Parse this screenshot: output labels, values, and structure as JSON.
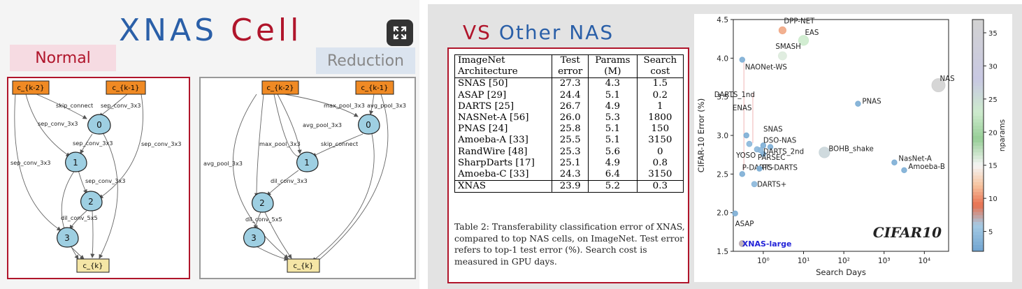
{
  "left": {
    "title_part1": "XNAS",
    "title_part2": "Cell",
    "expand_button": "expand-icon",
    "tag_normal": "Normal",
    "tag_reduction": "Reduction",
    "normal_cell": {
      "nodes": [
        "c_{k-2}",
        "c_{k-1}",
        "0",
        "1",
        "2",
        "3",
        "c_{k}"
      ],
      "edges": [
        "skip_connect",
        "sep_conv_3x3",
        "sep_conv_3x3",
        "sep_conv_3x3",
        "sep_conv_3x3",
        "sep_conv_3x3",
        "sep_conv_3x3",
        "dil_conv_5x5"
      ]
    },
    "reduction_cell": {
      "nodes": [
        "c_{k-2}",
        "c_{k-1}",
        "0",
        "1",
        "2",
        "3",
        "c_{k}"
      ],
      "edges": [
        "max_pool_3x3",
        "avg_pool_3x3",
        "avg_pool_3x3",
        "max_pool_3x3",
        "skip_connect",
        "avg_pool_3x3",
        "dil_conv_3x3",
        "dil_conv_5x5"
      ]
    }
  },
  "right": {
    "title_part1": "VS",
    "title_part2": "Other NAS",
    "table": {
      "header_row1": [
        "ImageNet",
        "Test",
        "Params",
        "Search"
      ],
      "header_row2": [
        "Architecture",
        "error",
        "(M)",
        "cost"
      ],
      "rows": [
        [
          "SNAS [50]",
          "27.3",
          "4.3",
          "1.5"
        ],
        [
          "ASAP [29]",
          "24.4",
          "5.1",
          "0.2"
        ],
        [
          "DARTS [25]",
          "26.7",
          "4.9",
          "1"
        ],
        [
          "NASNet-A [56]",
          "26.0",
          "5.3",
          "1800"
        ],
        [
          "PNAS [24]",
          "25.8",
          "5.1",
          "150"
        ],
        [
          "Amoeba-A [33]",
          "25.5",
          "5.1",
          "3150"
        ],
        [
          "RandWire [48]",
          "25.3",
          "5.6",
          "0"
        ],
        [
          "SharpDarts [17]",
          "25.1",
          "4.9",
          "0.8"
        ],
        [
          "Amoeba-C [33]",
          "24.3",
          "6.4",
          "3150"
        ]
      ],
      "final_row": [
        "XNAS",
        "23.9",
        "5.2",
        "0.3"
      ]
    },
    "caption": "Table 2: Transferability classification error of XNAS, compared to top NAS cells, on ImageNet. Test error refers to top-1 test error (%). Search cost is measured in GPU days."
  },
  "chart_data": {
    "type": "scatter",
    "xlabel": "Search Days",
    "ylabel": "CIFAR-10 Error (%)",
    "xscale": "log",
    "xlim": [
      0.18,
      40000
    ],
    "ylim": [
      1.5,
      4.5
    ],
    "x_ticks": [
      "10⁰",
      "10¹",
      "10²",
      "10³",
      "10⁴"
    ],
    "y_ticks": [
      "1.5",
      "2.0",
      "2.5",
      "3.0",
      "3.5",
      "4.0",
      "4.5"
    ],
    "annotation": "CIFAR10",
    "colorbar": {
      "label": "nparams",
      "ticks": [
        "5",
        "10",
        "15",
        "20",
        "25",
        "30",
        "35"
      ],
      "range": [
        2,
        37
      ]
    },
    "points": [
      {
        "label": "DPP-NET",
        "x": 3,
        "y": 4.36,
        "nparams": 11
      },
      {
        "label": "EAS",
        "x": 10,
        "y": 4.23,
        "nparams": 23
      },
      {
        "label": "SMASH",
        "x": 3,
        "y": 4.03,
        "nparams": 16
      },
      {
        "label": "NAONet-WS",
        "x": 0.3,
        "y": 3.98,
        "nparams": 3
      },
      {
        "label": "NAS",
        "x": 22400,
        "y": 3.65,
        "nparams": 37
      },
      {
        "label": "DARTS_1nd",
        "x": 0.38,
        "y": 3.0,
        "nparams": 3
      },
      {
        "label": "ENAS",
        "x": 0.45,
        "y": 2.89,
        "nparams": 4
      },
      {
        "label": "PNAS",
        "x": 225,
        "y": 3.41,
        "nparams": 3
      },
      {
        "label": "SNAS",
        "x": 1.5,
        "y": 2.85,
        "nparams": 3
      },
      {
        "label": "DSO-NAS",
        "x": 1,
        "y": 2.87,
        "nparams": 3
      },
      {
        "label": "DARTS_2nd",
        "x": 1,
        "y": 2.76,
        "nparams": 3
      },
      {
        "label": "YOSO",
        "x": 0.7,
        "y": 2.82,
        "nparams": 4
      },
      {
        "label": "PARSEC",
        "x": 0.85,
        "y": 2.81,
        "nparams": 4
      },
      {
        "label": "BOHB_shake",
        "x": 33,
        "y": 2.78,
        "nparams": 26
      },
      {
        "label": "NasNet-A",
        "x": 1800,
        "y": 2.65,
        "nparams": 3
      },
      {
        "label": "Amoeba-B",
        "x": 3150,
        "y": 2.55,
        "nparams": 3
      },
      {
        "label": "P-DARTS",
        "x": 0.3,
        "y": 2.5,
        "nparams": 3
      },
      {
        "label": "PC-DARTS",
        "x": 0.8,
        "y": 2.57,
        "nparams": 3
      },
      {
        "label": "DARTS+",
        "x": 0.6,
        "y": 2.37,
        "nparams": 4
      },
      {
        "label": "ASAP",
        "x": 0.2,
        "y": 1.99,
        "nparams": 3
      },
      {
        "label": "XNAS-large",
        "x": 0.3,
        "y": 1.6,
        "nparams": 7
      }
    ]
  }
}
